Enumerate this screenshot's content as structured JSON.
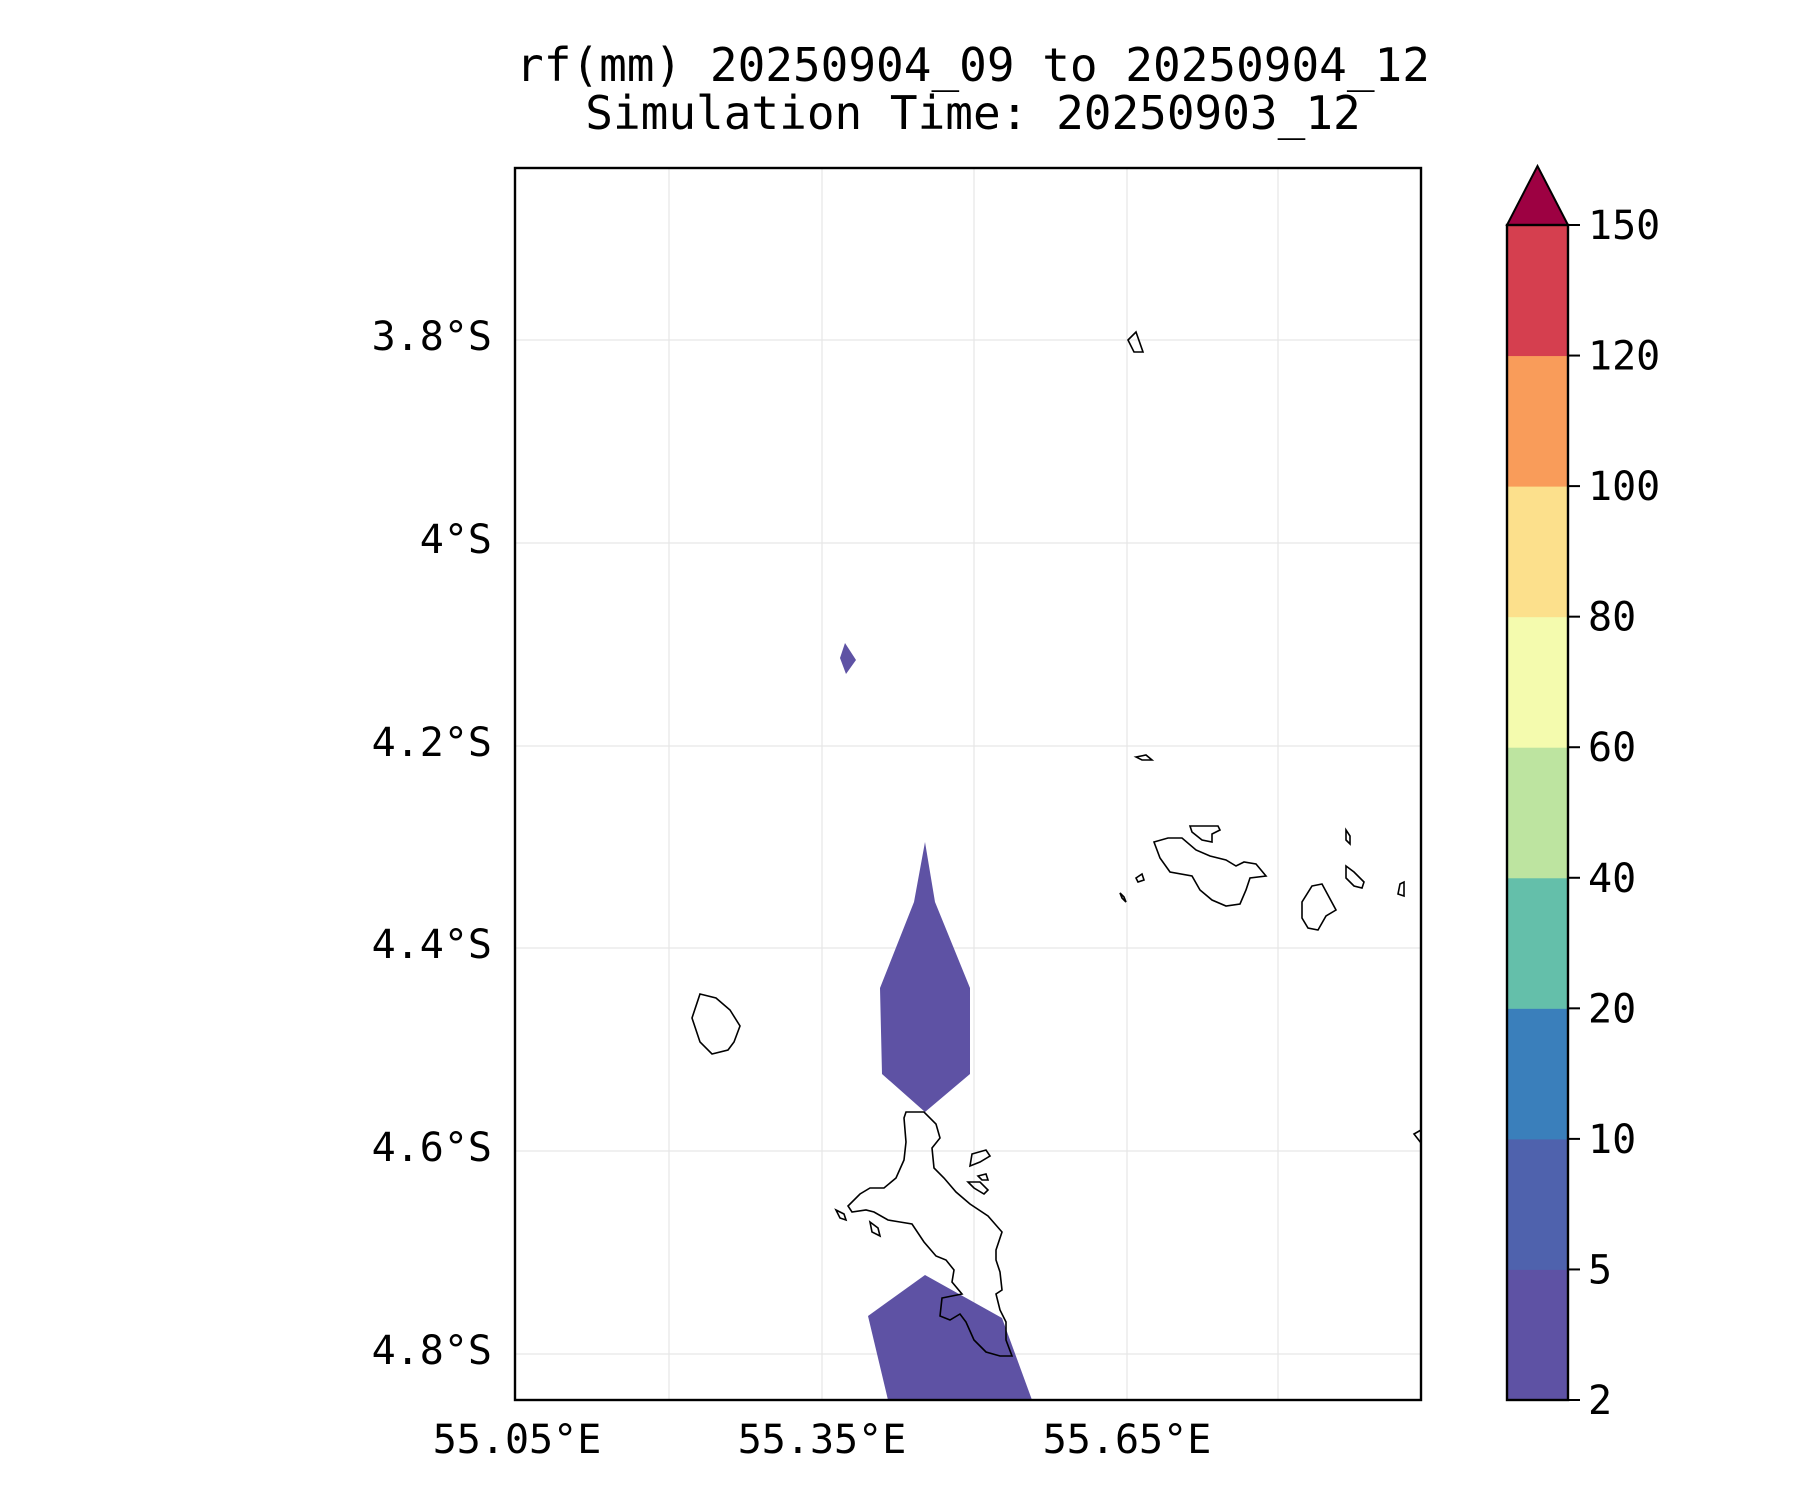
{
  "title": {
    "line1": "rf(mm) 20250904_09 to 20250904_12",
    "line2": "Simulation Time: 20250903_12"
  },
  "map": {
    "x_ticks": [
      "55.05°E",
      "55.35°E",
      "55.65°E"
    ],
    "y_ticks": [
      "3.8°S",
      "4°S",
      "4.2°S",
      "4.4°S",
      "4.6°S",
      "4.8°S"
    ],
    "gridlines": true,
    "rain_fill_color": "#5e52a4",
    "coastline_color": "#000000"
  },
  "colorbar": {
    "levels": [
      "2",
      "5",
      "10",
      "20",
      "40",
      "60",
      "80",
      "100",
      "120",
      "150"
    ],
    "colors": [
      "#5e52a4",
      "#4f62ad",
      "#3a7fbb",
      "#64bfaa",
      "#bde4a0",
      "#f4fbae",
      "#fce08c",
      "#f99c5a",
      "#d53f4f"
    ],
    "extend_color": "#9d0142",
    "extend": "max"
  }
}
